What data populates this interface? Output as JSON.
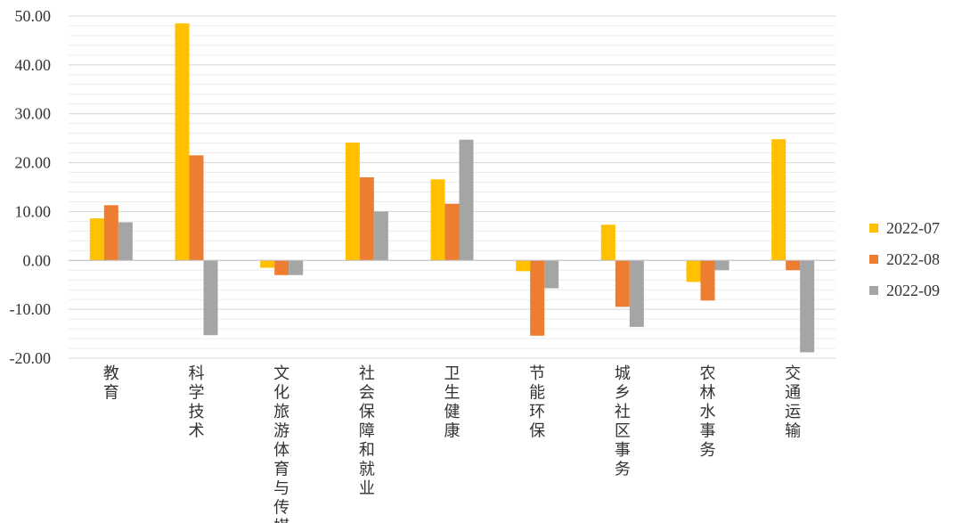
{
  "chart_data": {
    "type": "bar",
    "categories": [
      "教育",
      "科学技术",
      "文化旅游体育与传媒",
      "社会保障和就业",
      "卫生健康",
      "节能环保",
      "城乡社区事务",
      "农林水事务",
      "交通运输"
    ],
    "series": [
      {
        "name": "2022-07",
        "color": "#FFC000",
        "values": [
          8.6,
          48.5,
          -1.5,
          24.1,
          16.6,
          -2.2,
          7.3,
          -4.4,
          24.8
        ]
      },
      {
        "name": "2022-08",
        "color": "#ED7D31",
        "values": [
          11.3,
          21.5,
          -3.0,
          17.0,
          11.6,
          -15.4,
          -9.5,
          -8.2,
          -2.0
        ]
      },
      {
        "name": "2022-09",
        "color": "#A5A5A5",
        "values": [
          7.8,
          -15.3,
          -3.0,
          10.0,
          24.7,
          -5.7,
          -13.6,
          -2.0,
          -18.8
        ]
      }
    ],
    "y_ticks": [
      "50.00",
      "40.00",
      "30.00",
      "20.00",
      "10.00",
      "0.00",
      "-10.00",
      "-20.00"
    ],
    "ylim": [
      -20,
      50
    ],
    "title": "",
    "xlabel": "",
    "ylabel": "",
    "grid": true,
    "legend_position": "right"
  }
}
